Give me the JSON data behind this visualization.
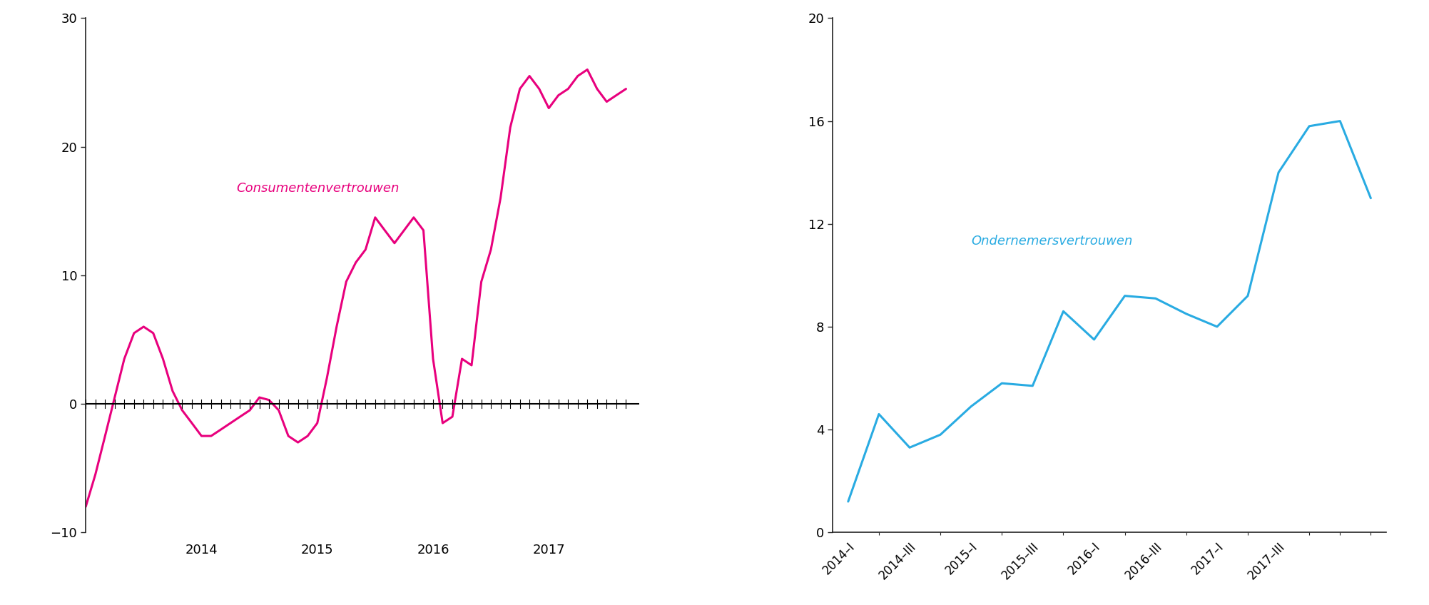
{
  "left_title": "Consumentenvertrouwen",
  "left_color": "#E8007D",
  "left_ylim": [
    -10,
    30
  ],
  "left_yticks": [
    -10,
    0,
    10,
    20,
    30
  ],
  "left_xticks": [
    2014,
    2015,
    2016,
    2017
  ],
  "left_x": [
    2013.0,
    2013.083,
    2013.167,
    2013.25,
    2013.333,
    2013.417,
    2013.5,
    2013.583,
    2013.667,
    2013.75,
    2013.833,
    2013.917,
    2014.0,
    2014.083,
    2014.167,
    2014.25,
    2014.333,
    2014.417,
    2014.5,
    2014.583,
    2014.667,
    2014.75,
    2014.833,
    2014.917,
    2015.0,
    2015.083,
    2015.167,
    2015.25,
    2015.333,
    2015.417,
    2015.5,
    2015.583,
    2015.667,
    2015.75,
    2015.833,
    2015.917,
    2016.0,
    2016.083,
    2016.167,
    2016.25,
    2016.333,
    2016.417,
    2016.5,
    2016.583,
    2016.667,
    2016.75,
    2016.833,
    2016.917,
    2017.0,
    2017.083,
    2017.167,
    2017.25,
    2017.333,
    2017.417,
    2017.5,
    2017.583,
    2017.667
  ],
  "left_y": [
    -8.0,
    -5.5,
    -2.5,
    0.5,
    3.5,
    5.5,
    6.0,
    5.5,
    3.5,
    1.0,
    -0.5,
    -1.5,
    -2.5,
    -2.5,
    -2.0,
    -1.5,
    -1.0,
    -0.5,
    0.5,
    0.3,
    -0.5,
    -2.5,
    -3.0,
    -2.5,
    -1.5,
    2.0,
    6.0,
    9.5,
    11.0,
    12.0,
    14.5,
    13.5,
    12.5,
    13.5,
    14.5,
    13.5,
    3.5,
    -1.5,
    -1.0,
    3.5,
    3.0,
    9.5,
    12.0,
    16.0,
    21.5,
    24.5,
    25.5,
    24.5,
    23.0,
    24.0,
    24.5,
    25.5,
    26.0,
    24.5,
    23.5,
    24.0,
    24.5
  ],
  "right_title": "Ondernemersvertrouwen",
  "right_color": "#29ABE2",
  "right_ylim": [
    0,
    20
  ],
  "right_yticks": [
    0,
    4,
    8,
    12,
    16,
    20
  ],
  "right_xtick_labels": [
    "2014–I",
    "2014–III",
    "2015–I",
    "2015–III",
    "2016–I",
    "2016–III",
    "2017–I",
    "2017–III"
  ],
  "right_xtick_positions": [
    0,
    2,
    4,
    6,
    8,
    10,
    12,
    14
  ],
  "right_y": [
    1.2,
    4.6,
    3.3,
    3.8,
    4.9,
    5.8,
    5.7,
    8.6,
    7.5,
    9.2,
    9.1,
    8.5,
    8.0,
    9.2,
    14.0,
    15.8,
    16.0,
    13.0
  ],
  "background_color": "#FFFFFF",
  "tick_color": "#222222",
  "tick_fontsize": 13,
  "label_fontsize": 13
}
